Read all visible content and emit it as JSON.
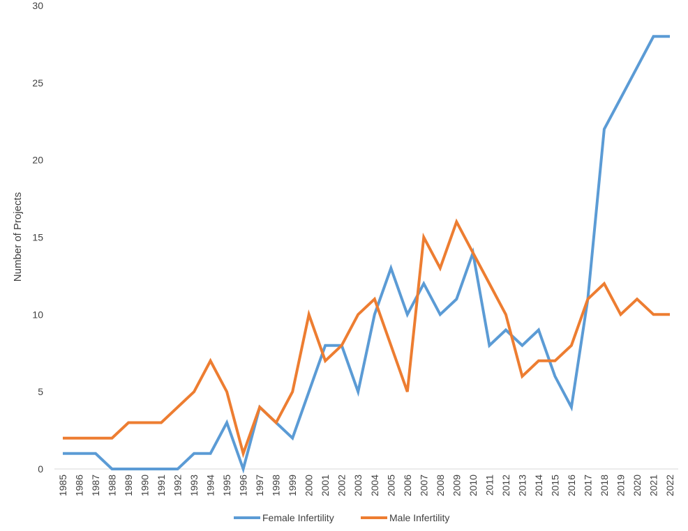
{
  "chart_data": {
    "type": "line",
    "title": "",
    "xlabel": "",
    "ylabel": "Number of Projects",
    "ylim": [
      0,
      30
    ],
    "yticks": [
      0,
      5,
      10,
      15,
      20,
      25,
      30
    ],
    "grid": false,
    "legend_position": "bottom",
    "x": [
      1985,
      1986,
      1987,
      1988,
      1989,
      1990,
      1991,
      1992,
      1993,
      1994,
      1995,
      1996,
      1997,
      1998,
      1999,
      2000,
      2001,
      2002,
      2003,
      2004,
      2005,
      2006,
      2007,
      2008,
      2009,
      2010,
      2011,
      2012,
      2013,
      2014,
      2015,
      2016,
      2017,
      2018,
      2019,
      2020,
      2021,
      2022
    ],
    "series": [
      {
        "name": "Female Infertility",
        "color": "#5b9bd5",
        "values": [
          1,
          1,
          1,
          0,
          0,
          0,
          0,
          0,
          1,
          1,
          3,
          0,
          4,
          3,
          2,
          5,
          8,
          8,
          5,
          10,
          13,
          10,
          12,
          10,
          11,
          14,
          8,
          9,
          8,
          9,
          6,
          4,
          11,
          22,
          24,
          26,
          28,
          28
        ]
      },
      {
        "name": "Male Infertility",
        "color": "#ed7d31",
        "values": [
          2,
          2,
          2,
          2,
          3,
          3,
          3,
          4,
          5,
          7,
          5,
          1,
          4,
          3,
          5,
          10,
          7,
          8,
          10,
          11,
          8,
          5,
          15,
          13,
          16,
          14,
          12,
          10,
          6,
          7,
          7,
          8,
          11,
          12,
          10,
          11,
          10,
          10
        ]
      }
    ]
  }
}
